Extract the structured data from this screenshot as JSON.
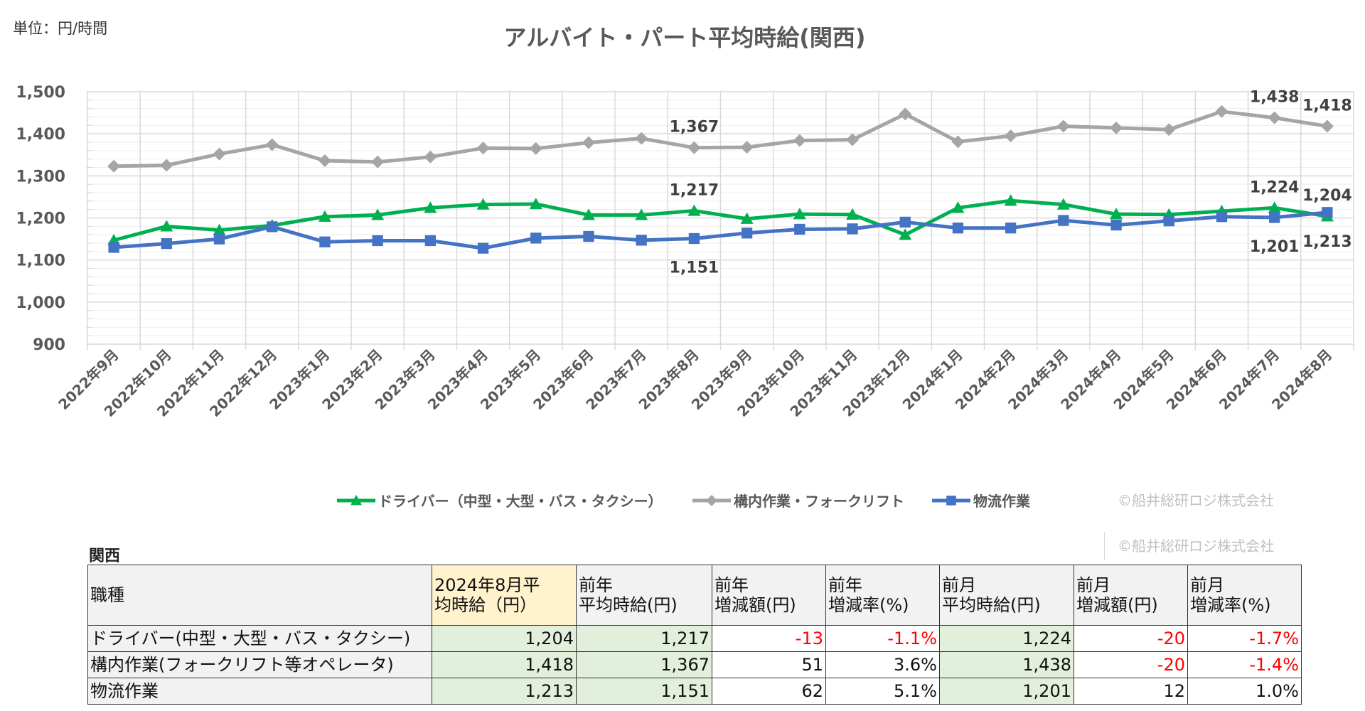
{
  "unit_label": "単位：円/時間",
  "copyright": "©船井総研ロジ株式会社",
  "chart_data": {
    "type": "line",
    "title": "アルバイト・パート平均時給(関西)",
    "ylim": [
      900,
      1500
    ],
    "yticks": [
      "900",
      "1,000",
      "1,100",
      "1,200",
      "1,300",
      "1,400",
      "1,500"
    ],
    "ytick_values": [
      900,
      1000,
      1100,
      1200,
      1300,
      1400,
      1500
    ],
    "grid": true,
    "legend_position": "bottom",
    "categories": [
      "2022年9月",
      "2022年10月",
      "2022年11月",
      "2022年12月",
      "2023年1月",
      "2023年2月",
      "2023年3月",
      "2023年4月",
      "2023年5月",
      "2023年6月",
      "2023年7月",
      "2023年8月",
      "2023年9月",
      "2023年10月",
      "2023年11月",
      "2023年12月",
      "2024年1月",
      "2024年2月",
      "2024年3月",
      "2024年4月",
      "2024年5月",
      "2024年6月",
      "2024年7月",
      "2024年8月"
    ],
    "series": [
      {
        "name": "ドライバー（中型・大型・バス・タクシー）",
        "color": "#00b050",
        "marker": "triangle",
        "values": [
          1147,
          1180,
          1171,
          1182,
          1203,
          1207,
          1224,
          1232,
          1233,
          1207,
          1207,
          1217,
          1198,
          1209,
          1208,
          1160,
          1224,
          1241,
          1232,
          1209,
          1208,
          1216,
          1224,
          1204
        ]
      },
      {
        "name": "構内作業・フォークリフト",
        "color": "#a5a5a5",
        "marker": "diamond",
        "values": [
          1323,
          1325,
          1352,
          1374,
          1336,
          1333,
          1345,
          1366,
          1365,
          1379,
          1389,
          1367,
          1368,
          1384,
          1386,
          1447,
          1381,
          1395,
          1418,
          1414,
          1410,
          1453,
          1438,
          1418
        ]
      },
      {
        "name": "物流作業",
        "color": "#4472c4",
        "marker": "square",
        "values": [
          1130,
          1139,
          1150,
          1179,
          1143,
          1146,
          1146,
          1128,
          1152,
          1156,
          1147,
          1151,
          1164,
          1173,
          1174,
          1190,
          1176,
          1176,
          1194,
          1183,
          1193,
          1203,
          1201,
          1213
        ]
      }
    ],
    "annotations": [
      {
        "series": 1,
        "index": 11,
        "text": "1,367",
        "position": "above"
      },
      {
        "series": 0,
        "index": 11,
        "text": "1,217",
        "position": "above"
      },
      {
        "series": 2,
        "index": 11,
        "text": "1,151",
        "position": "below"
      },
      {
        "series": 1,
        "index": 22,
        "text": "1,438",
        "position": "above"
      },
      {
        "series": 1,
        "index": 23,
        "text": "1,418",
        "position": "above"
      },
      {
        "series": 0,
        "index": 22,
        "text": "1,224",
        "position": "above"
      },
      {
        "series": 0,
        "index": 23,
        "text": "1,204",
        "position": "above"
      },
      {
        "series": 2,
        "index": 22,
        "text": "1,201",
        "position": "below"
      },
      {
        "series": 2,
        "index": 23,
        "text": "1,213",
        "position": "below"
      }
    ]
  },
  "table": {
    "region": "関西",
    "headers": [
      "職種",
      "2024年8月平\n均時給（円）",
      "前年\n平均時給(円)",
      "前年\n増減額(円)",
      "前年\n増減率(%)",
      "前月\n平均時給(円)",
      "前月\n増減額(円)",
      "前月\n増減率(%)"
    ],
    "rows": [
      [
        "ドライバー(中型・大型・バス・タクシー)",
        "1,204",
        "1,217",
        "-13",
        "-1.1%",
        "1,224",
        "-20",
        "-1.7%"
      ],
      [
        "構内作業(フォークリフト等オペレータ)",
        "1,418",
        "1,367",
        "51",
        "3.6%",
        "1,438",
        "-20",
        "-1.4%"
      ],
      [
        "物流作業",
        "1,213",
        "1,151",
        "62",
        "5.1%",
        "1,201",
        "12",
        "1.0%"
      ]
    ],
    "highlight_color": "#fff2cc",
    "value_bg_color": "#e2efda",
    "negative_color": "#ff0000"
  }
}
